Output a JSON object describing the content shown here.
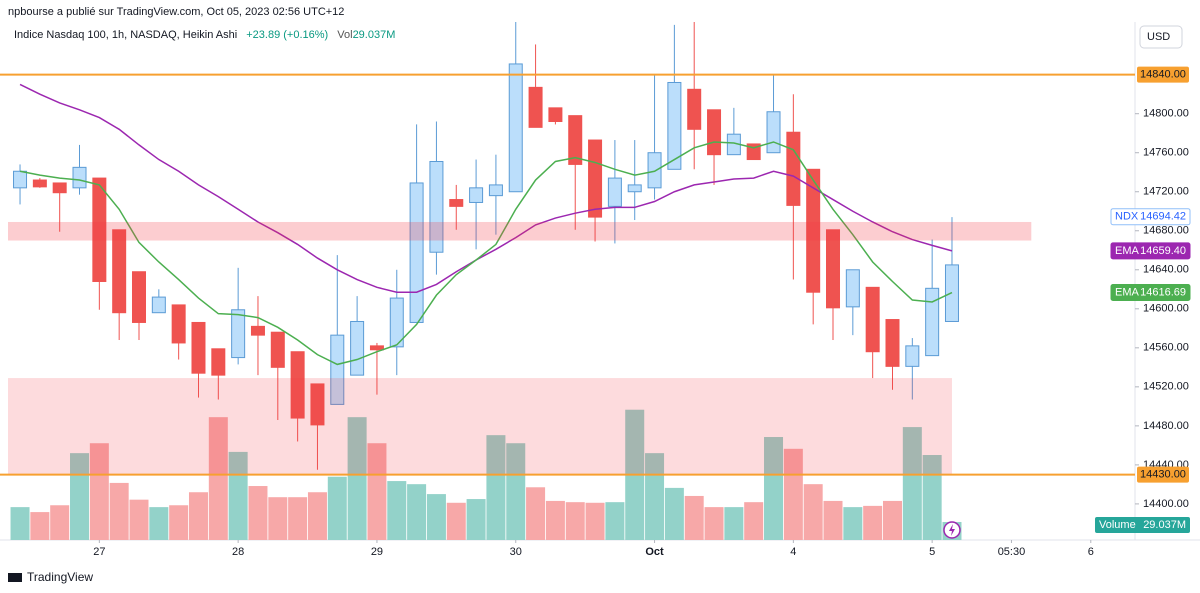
{
  "header": {
    "publisher": "npbourse a publié sur TradingView.com, Oct 05, 2023 02:56 UTC+12"
  },
  "chart_data": {
    "type": "candlestick",
    "title": "Indice Nasdaq 100, 1h, NASDAQ, Heikin Ashi",
    "change": "+23.89 (+0.16%)",
    "volume_title": "Vol",
    "currency": "USD",
    "symbol": "NDX",
    "last_price": 14694.42,
    "up_color": "#bbdefb",
    "up_border": "#5b9bd5",
    "down_color": "#ef5350",
    "open": [
      14724,
      14732,
      14729,
      14724,
      14734,
      14681,
      14638,
      14596,
      14604,
      14586,
      14559,
      14550,
      14582,
      14576,
      14556,
      14523,
      14502,
      14532,
      14562,
      14561,
      14586,
      14658,
      14712,
      14709,
      14716,
      14720,
      14827,
      14806,
      14798,
      14773,
      14705,
      14720,
      14724,
      14743,
      14825,
      14804,
      14758,
      14769,
      14760,
      14781,
      14743,
      14681,
      14602,
      14622,
      14589,
      14541,
      14552,
      14587
    ],
    "high": [
      14748,
      14734,
      14729,
      14768,
      14734,
      14681,
      14638,
      14620,
      14604,
      14586,
      14559,
      14642,
      14613,
      14576,
      14556,
      14523,
      14655,
      14613,
      14565,
      14640,
      14789,
      14792,
      14727,
      14753,
      14758,
      14894,
      14871,
      14806,
      14798,
      14773,
      14773,
      14773,
      14840,
      14891,
      14894,
      14804,
      14806,
      14769,
      14840,
      14820,
      14743,
      14681,
      14640,
      14622,
      14589,
      14570,
      14671,
      14694
    ],
    "low": [
      14707,
      14724,
      14679,
      14717,
      14599,
      14568,
      14568,
      14596,
      14548,
      14509,
      14507,
      14543,
      14532,
      14486,
      14464,
      14435,
      14502,
      14532,
      14512,
      14532,
      14586,
      14635,
      14681,
      14661,
      14676,
      14720,
      14786,
      14789,
      14681,
      14669,
      14667,
      14691,
      14712,
      14743,
      14743,
      14727,
      14758,
      14753,
      14760,
      14630,
      14584,
      14568,
      14573,
      14529,
      14517,
      14507,
      14552,
      14587
    ],
    "close": [
      14741,
      14725,
      14719,
      14745,
      14628,
      14596,
      14586,
      14612,
      14565,
      14534,
      14532,
      14599,
      14573,
      14540,
      14488,
      14481,
      14573,
      14587,
      14558,
      14611,
      14729,
      14751,
      14705,
      14724,
      14727,
      14851,
      14786,
      14792,
      14748,
      14694,
      14734,
      14727,
      14760,
      14832,
      14784,
      14758,
      14779,
      14753,
      14802,
      14706,
      14617,
      14601,
      14640,
      14556,
      14541,
      14562,
      14621,
      14645
    ],
    "series": [
      {
        "name": "EMA",
        "color": "#9c27b0",
        "last_value_label": "14659.40",
        "values": [
          14830,
          14820,
          14811,
          14804,
          14796,
          14784,
          14768,
          14753,
          14741,
          14727,
          14715,
          14702,
          14689,
          14678,
          14666,
          14652,
          14640,
          14630,
          14622,
          14617,
          14617,
          14625,
          14638,
          14650,
          14661,
          14673,
          14686,
          14693,
          14698,
          14702,
          14704,
          14704,
          14710,
          14720,
          14727,
          14730,
          14733,
          14734,
          14741,
          14736,
          14724,
          14712,
          14700,
          14689,
          14679,
          14671,
          14665,
          14659.4
        ]
      },
      {
        "name": "EMA",
        "color": "#4caf50",
        "last_value_label": "14616.69",
        "values": [
          14741,
          14737,
          14734,
          14732,
          14727,
          14702,
          14668,
          14648,
          14630,
          14611,
          14595,
          14594,
          14591,
          14581,
          14568,
          14553,
          14543,
          14548,
          14556,
          14563,
          14584,
          14614,
          14635,
          14650,
          14666,
          14702,
          14732,
          14751,
          14755,
          14750,
          14743,
          14737,
          14741,
          14753,
          14765,
          14771,
          14770,
          14765,
          14771,
          14763,
          14732,
          14702,
          14676,
          14648,
          14628,
          14609,
          14607,
          14616.69
        ]
      }
    ],
    "volume": {
      "name": "Volume",
      "value_label": "29.037M",
      "up_color": "#93d2c9",
      "down_color": "#f7a8a8",
      "tag_color": "#26a69a",
      "vlim": [
        0,
        835
      ],
      "values": [
        53,
        45,
        56,
        140,
        156,
        92,
        65,
        53,
        56,
        77,
        198,
        142,
        87,
        69,
        69,
        77,
        102,
        198,
        156,
        95,
        90,
        74,
        60,
        66,
        169,
        156,
        85,
        63,
        61,
        60,
        61,
        210,
        140,
        84,
        71,
        53,
        53,
        61,
        166,
        147,
        90,
        63,
        53,
        55,
        63,
        182,
        137,
        29.037
      ]
    },
    "levels": [
      {
        "value": 14840,
        "label": "14840.00",
        "color": "#f7a030"
      },
      {
        "value": 14430,
        "label": "14430.00",
        "color": "#f7a030"
      }
    ],
    "zones": [
      {
        "from": 14670,
        "to": 14689,
        "x_end": 51,
        "color": "rgba(242,54,69,0.25)"
      },
      {
        "from": 14430,
        "to": 14529,
        "x_end": 47,
        "color": "rgba(242,54,69,0.18)"
      }
    ],
    "xlim": [
      -1.01,
      56.23
    ],
    "xticks": [
      {
        "value": 4,
        "label": "27"
      },
      {
        "value": 11,
        "label": "28"
      },
      {
        "value": 18,
        "label": "29"
      },
      {
        "value": 25,
        "label": "30"
      },
      {
        "value": 32,
        "label": "Oct"
      },
      {
        "value": 39,
        "label": "4"
      },
      {
        "value": 46,
        "label": "5"
      },
      {
        "value": 50,
        "label": "05:30"
      },
      {
        "value": 54,
        "label": "6"
      }
    ],
    "ylim": [
      14363,
      14894
    ],
    "yticks": [
      {
        "value": 14400,
        "label": "14400.00"
      },
      {
        "value": 14440,
        "label": "14440.00"
      },
      {
        "value": 14480,
        "label": "14480.00"
      },
      {
        "value": 14520,
        "label": "14520.00"
      },
      {
        "value": 14560,
        "label": "14560.00"
      },
      {
        "value": 14600,
        "label": "14600.00"
      },
      {
        "value": 14640,
        "label": "14640.00"
      },
      {
        "value": 14680,
        "label": "14680.00"
      },
      {
        "value": 14720,
        "label": "14720.00"
      },
      {
        "value": 14760,
        "label": "14760.00"
      },
      {
        "value": 14800,
        "label": "14800.00"
      }
    ],
    "grid": false
  },
  "footer": {
    "brand": "TradingView"
  }
}
